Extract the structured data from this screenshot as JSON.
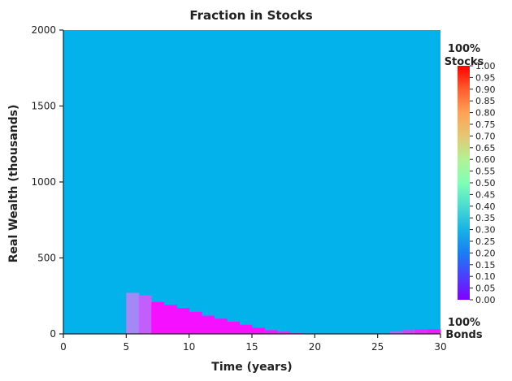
{
  "chart_data": {
    "type": "heatmap",
    "title": "Fraction in Stocks",
    "xlabel": "Time (years)",
    "ylabel": "Real Wealth (thousands)",
    "xlim": [
      0,
      30
    ],
    "ylim": [
      0,
      2000
    ],
    "x_ticks": [
      "0",
      "5",
      "10",
      "15",
      "20",
      "25",
      "30"
    ],
    "y_ticks": [
      "0",
      "500",
      "1000",
      "1500",
      "2000"
    ],
    "colormap": "rainbow",
    "color_range": [
      0.0,
      1.0
    ],
    "colorbar_ticks": [
      "0.00",
      "0.05",
      "0.10",
      "0.15",
      "0.20",
      "0.25",
      "0.30",
      "0.35",
      "0.40",
      "0.45",
      "0.50",
      "0.55",
      "0.60",
      "0.65",
      "0.70",
      "0.75",
      "0.80",
      "0.85",
      "0.90",
      "0.95",
      "1.00"
    ],
    "colorbar_top_label": [
      "100%",
      "Stocks"
    ],
    "colorbar_bottom_label": [
      "100%",
      "Bonds"
    ],
    "background_value": 0.25,
    "regions": [
      {
        "x": [
          0,
          5
        ],
        "y": [
          0,
          2000
        ],
        "value": 0.25
      },
      {
        "x": [
          5,
          6
        ],
        "y": [
          0,
          270
        ],
        "value": 0.18
      },
      {
        "x": [
          6,
          7
        ],
        "y": [
          0,
          255
        ],
        "value": 0.12
      },
      {
        "x": [
          7,
          8
        ],
        "y": [
          0,
          210
        ],
        "value": 0.02
      },
      {
        "x": [
          8,
          9
        ],
        "y": [
          0,
          190
        ],
        "value": 0.02
      },
      {
        "x": [
          9,
          10
        ],
        "y": [
          0,
          170
        ],
        "value": 0.02
      },
      {
        "x": [
          10,
          11
        ],
        "y": [
          0,
          145
        ],
        "value": 0.02
      },
      {
        "x": [
          11,
          12
        ],
        "y": [
          0,
          120
        ],
        "value": 0.02
      },
      {
        "x": [
          12,
          13
        ],
        "y": [
          0,
          100
        ],
        "value": 0.02
      },
      {
        "x": [
          13,
          14
        ],
        "y": [
          0,
          80
        ],
        "value": 0.02
      },
      {
        "x": [
          14,
          15
        ],
        "y": [
          0,
          60
        ],
        "value": 0.02
      },
      {
        "x": [
          15,
          16
        ],
        "y": [
          0,
          40
        ],
        "value": 0.02
      },
      {
        "x": [
          16,
          17
        ],
        "y": [
          0,
          25
        ],
        "value": 0.03
      },
      {
        "x": [
          17,
          18
        ],
        "y": [
          0,
          15
        ],
        "value": 0.05
      },
      {
        "x": [
          18,
          19
        ],
        "y": [
          0,
          8
        ],
        "value": 0.08
      },
      {
        "x": [
          26,
          27
        ],
        "y": [
          0,
          15
        ],
        "value": 0.12
      },
      {
        "x": [
          27,
          28
        ],
        "y": [
          0,
          25
        ],
        "value": 0.08
      },
      {
        "x": [
          28,
          29
        ],
        "y": [
          0,
          30
        ],
        "value": 0.05
      },
      {
        "x": [
          29,
          30
        ],
        "y": [
          0,
          30
        ],
        "value": 0.03
      }
    ],
    "grid": false
  }
}
